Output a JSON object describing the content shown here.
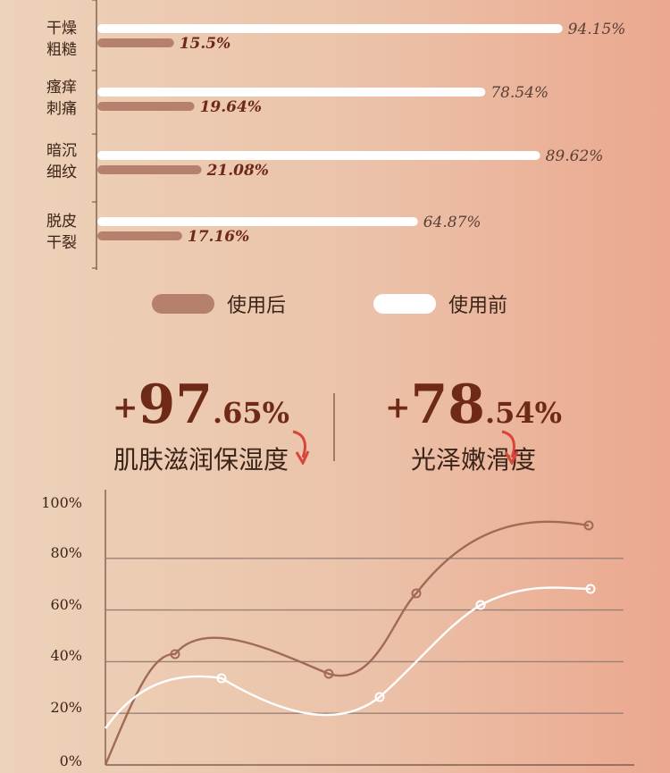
{
  "chart_data": [
    {
      "type": "bar",
      "categories": [
        "干燥\n粗糙",
        "瘙痒\n刺痛",
        "暗沉\n细纹",
        "脱皮\n干裂"
      ],
      "series": [
        {
          "name": "使用前",
          "values": [
            94.15,
            78.54,
            89.62,
            64.87
          ],
          "labels": [
            "94.15%",
            "78.54%",
            "89.62%",
            "64.87%"
          ],
          "color": "#ffffff"
        },
        {
          "name": "使用后",
          "values": [
            15.5,
            19.64,
            21.08,
            17.16
          ],
          "labels": [
            "15.5%",
            "19.64%",
            "21.08%",
            "17.16%"
          ],
          "color": "#b5806c"
        }
      ],
      "orientation": "horizontal"
    },
    {
      "type": "line",
      "ylim": [
        0,
        100
      ],
      "yticks": [
        "0%",
        "20%",
        "40%",
        "60%",
        "80%",
        "100%"
      ],
      "grid": true,
      "series": [
        {
          "color": "#a06a56",
          "points": [
            [
              0,
              0
            ],
            [
              1,
              40
            ],
            [
              2,
              32
            ],
            [
              3,
              64
            ],
            [
              4,
              90
            ]
          ]
        },
        {
          "color": "#ffffff",
          "points": [
            [
              0,
              15
            ],
            [
              1,
              31
            ],
            [
              2,
              24
            ],
            [
              3,
              61
            ],
            [
              4,
              66
            ]
          ]
        }
      ]
    }
  ],
  "legend": {
    "after_label": "使用后",
    "before_label": "使用前"
  },
  "stats": [
    {
      "plus": "+",
      "int": "97",
      "dec": ".65%",
      "caption": "肌肤滋润保湿度"
    },
    {
      "plus": "+",
      "int": "78",
      "dec": ".54%",
      "caption": "光泽嫩滑度"
    }
  ],
  "colors": {
    "accent": "#6e2a17",
    "after": "#b5806c",
    "before": "#ffffff",
    "arrow": "#d9453a"
  }
}
